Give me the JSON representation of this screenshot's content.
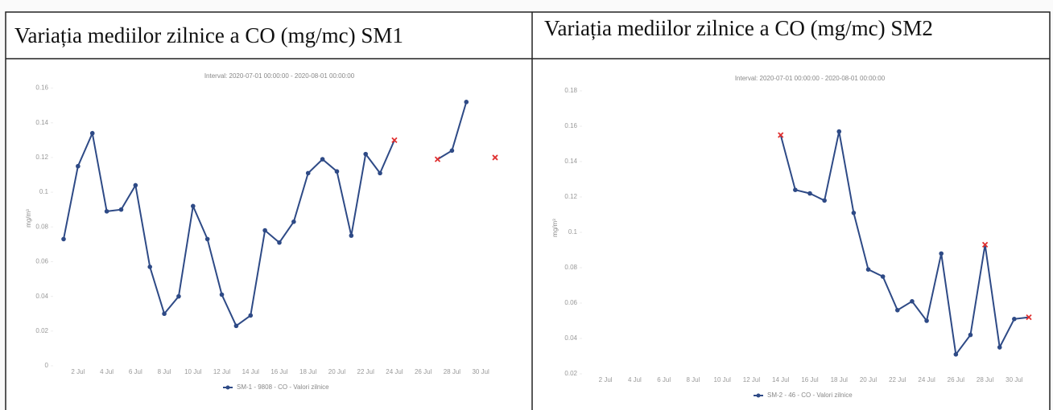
{
  "chart_data": [
    {
      "type": "line",
      "title": "Variația mediilor zilnice a CO (mg/mc) SM1",
      "subtitle": "Interval: 2020-07-01 00:00:00 - 2020-08-01 00:00:00",
      "y_label": "mg/m³",
      "categories": [
        null,
        "2 Jul",
        null,
        "4 Jul",
        null,
        "6 Jul",
        null,
        "8 Jul",
        null,
        "10 Jul",
        null,
        "12 Jul",
        null,
        "14 Jul",
        null,
        "16 Jul",
        null,
        "18 Jul",
        null,
        "20 Jul",
        null,
        "22 Jul",
        null,
        "24 Jul",
        null,
        "26 Jul",
        null,
        "28 Jul",
        null,
        "30 Jul",
        null
      ],
      "series": [
        {
          "name": "SM-1 - 9808 - CO - Valori zilnice",
          "color": "#2e4a86",
          "values": [
            0.073,
            0.115,
            0.134,
            0.089,
            0.09,
            0.104,
            0.057,
            0.03,
            0.04,
            0.092,
            0.073,
            0.041,
            0.023,
            0.029,
            0.078,
            0.071,
            0.083,
            0.111,
            0.119,
            0.112,
            0.075,
            0.122,
            0.111,
            0.13,
            null,
            null,
            0.119,
            0.124,
            0.152,
            null,
            0.12
          ],
          "marker_colors": [
            "#2e4a86",
            "#2e4a86",
            "#2e4a86",
            "#2e4a86",
            "#2e4a86",
            "#2e4a86",
            "#2e4a86",
            "#2e4a86",
            "#2e4a86",
            "#2e4a86",
            "#2e4a86",
            "#2e4a86",
            "#2e4a86",
            "#2e4a86",
            "#2e4a86",
            "#2e4a86",
            "#2e4a86",
            "#2e4a86",
            "#2e4a86",
            "#2e4a86",
            "#2e4a86",
            "#2e4a86",
            "#2e4a86",
            "#e03030",
            null,
            null,
            "#e03030",
            "#2e4a86",
            "#2e4a86",
            null,
            "#e03030"
          ]
        }
      ],
      "ylim": [
        0,
        0.17
      ],
      "yticks": [
        0,
        0.02,
        0.04,
        0.06,
        0.08,
        0.1,
        0.12,
        0.14,
        0.16
      ]
    },
    {
      "type": "line",
      "title": "Variația mediilor zilnice a CO (mg/mc) SM2",
      "subtitle": "Interval: 2020-07-01 00:00:00 - 2020-08-01 00:00:00",
      "y_label": "mg/m³",
      "categories": [
        null,
        "2 Jul",
        null,
        "4 Jul",
        null,
        "6 Jul",
        null,
        "8 Jul",
        null,
        "10 Jul",
        null,
        "12 Jul",
        null,
        "14 Jul",
        null,
        "16 Jul",
        null,
        "18 Jul",
        null,
        "20 Jul",
        null,
        "22 Jul",
        null,
        "24 Jul",
        null,
        "26 Jul",
        null,
        "28 Jul",
        null,
        "30 Jul",
        null
      ],
      "series": [
        {
          "name": "SM-2 - 46 - CO - Valori zilnice",
          "color": "#2e4a86",
          "values": [
            null,
            null,
            null,
            null,
            null,
            null,
            null,
            null,
            null,
            null,
            null,
            null,
            null,
            0.155,
            0.124,
            0.122,
            0.118,
            0.157,
            0.111,
            0.079,
            0.075,
            0.056,
            0.061,
            0.05,
            0.088,
            0.031,
            0.042,
            0.093,
            0.035,
            0.051,
            0.052
          ],
          "marker_colors": [
            null,
            null,
            null,
            null,
            null,
            null,
            null,
            null,
            null,
            null,
            null,
            null,
            null,
            "#e03030",
            "#2e4a86",
            "#2e4a86",
            "#2e4a86",
            "#2e4a86",
            "#2e4a86",
            "#2e4a86",
            "#2e4a86",
            "#2e4a86",
            "#2e4a86",
            "#2e4a86",
            "#2e4a86",
            "#2e4a86",
            "#2e4a86",
            "#e03030",
            "#2e4a86",
            "#2e4a86",
            "#e03030"
          ]
        }
      ],
      "ylim": [
        0.02,
        0.185
      ],
      "yticks": [
        0.02,
        0.04,
        0.06,
        0.08,
        0.1,
        0.12,
        0.14,
        0.16,
        0.18
      ]
    }
  ]
}
